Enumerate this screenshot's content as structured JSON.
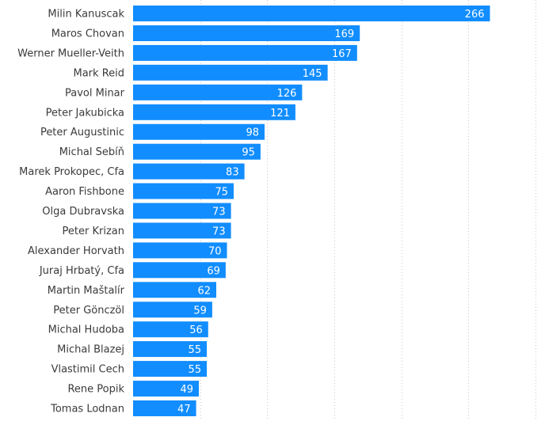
{
  "chart_data": {
    "type": "bar",
    "orientation": "horizontal",
    "title": "",
    "xlabel": "",
    "ylabel": "",
    "grid": true,
    "bar_color": "#118DFF",
    "value_label_color": "#FFFFFF",
    "categories": [
      "Milin Kanuscak",
      "Maros Chovan",
      "Werner Mueller-Veith",
      "Mark Reid",
      "Pavol Minar",
      "Peter Jakubicka",
      "Peter Augustinic",
      "Michal Sebíň",
      "Marek Prokopec, Cfa",
      "Aaron Fishbone",
      "Olga Dubravska",
      "Peter Krizan",
      "Alexander Horvath",
      "Juraj Hrbatý, Cfa",
      "Martin Maštalír",
      "Peter Gönczöl",
      "Michal Hudoba",
      "Michal Blazej",
      "Vlastimil Cech",
      "Rene Popik",
      "Tomas Lodnan"
    ],
    "values": [
      266,
      169,
      167,
      145,
      126,
      121,
      98,
      95,
      83,
      75,
      73,
      73,
      70,
      69,
      62,
      59,
      56,
      55,
      55,
      49,
      47
    ],
    "xlim": [
      0,
      300
    ]
  }
}
